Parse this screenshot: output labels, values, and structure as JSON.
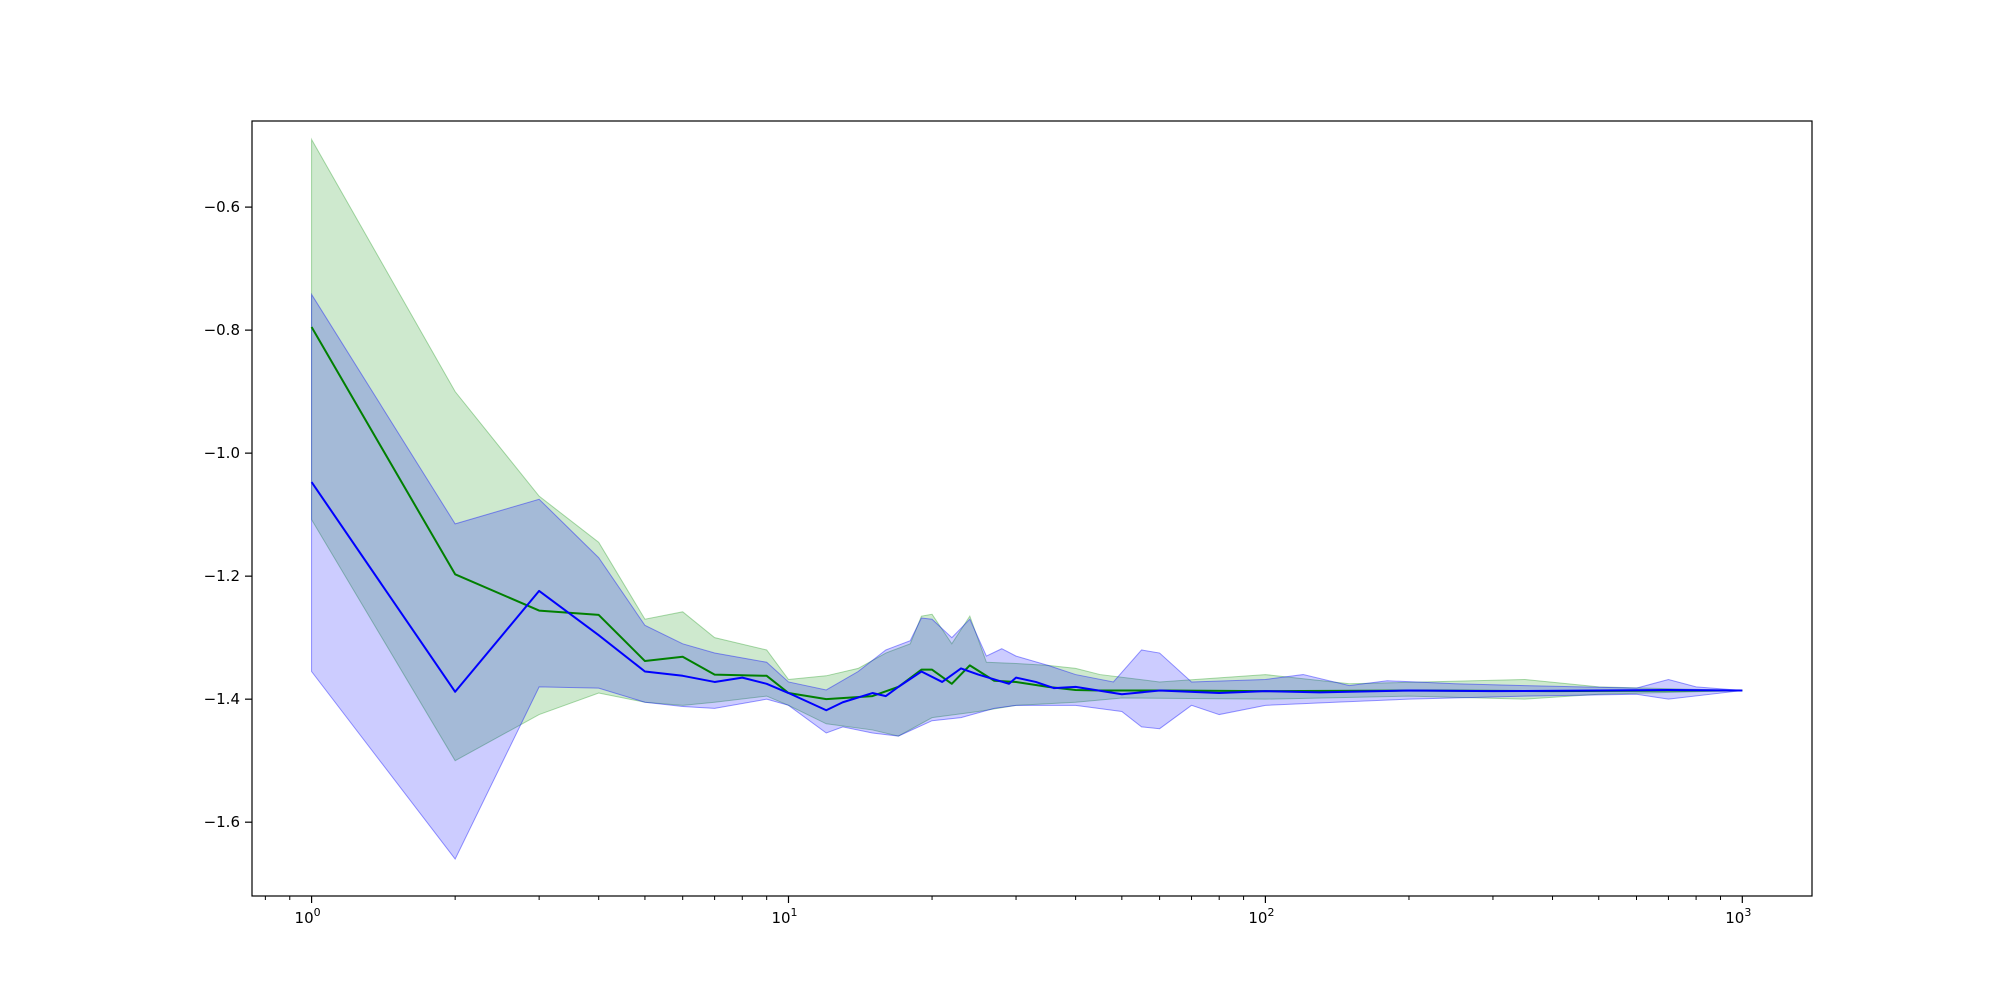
{
  "chart_data": {
    "type": "line",
    "title": "",
    "xlabel": "",
    "ylabel": "",
    "xscale": "log",
    "xlim": [
      0.75,
      1400
    ],
    "ylim": [
      -1.72,
      -0.46
    ],
    "grid": false,
    "legend": "none",
    "x_ticks": [
      {
        "value": 1,
        "base": "10",
        "exp": "0"
      },
      {
        "value": 10,
        "base": "10",
        "exp": "1"
      },
      {
        "value": 100,
        "base": "10",
        "exp": "2"
      },
      {
        "value": 1000,
        "base": "10",
        "exp": "3"
      }
    ],
    "y_ticks": [
      {
        "value": -0.6,
        "label": "−0.6"
      },
      {
        "value": -0.8,
        "label": "−0.8"
      },
      {
        "value": -1.0,
        "label": "−1.0"
      },
      {
        "value": -1.2,
        "label": "−1.2"
      },
      {
        "value": -1.4,
        "label": "−1.4"
      },
      {
        "value": -1.6,
        "label": "−1.6"
      }
    ],
    "series": [
      {
        "color": "#008000",
        "band_color": "#2ca02c",
        "band_opacity": 0.23,
        "mean": [
          [
            1,
            -0.795
          ],
          [
            2,
            -1.197
          ],
          [
            3,
            -1.256
          ],
          [
            4,
            -1.263
          ],
          [
            5,
            -1.338
          ],
          [
            6,
            -1.331
          ],
          [
            7,
            -1.36
          ],
          [
            9,
            -1.362
          ],
          [
            10,
            -1.39
          ],
          [
            12,
            -1.4
          ],
          [
            15,
            -1.395
          ],
          [
            17,
            -1.38
          ],
          [
            19,
            -1.352
          ],
          [
            20,
            -1.352
          ],
          [
            22,
            -1.375
          ],
          [
            24,
            -1.345
          ],
          [
            27,
            -1.37
          ],
          [
            30,
            -1.372
          ],
          [
            35,
            -1.38
          ],
          [
            40,
            -1.385
          ],
          [
            45,
            -1.386
          ],
          [
            60,
            -1.386
          ],
          [
            100,
            -1.387
          ],
          [
            200,
            -1.386
          ],
          [
            400,
            -1.387
          ],
          [
            700,
            -1.386
          ],
          [
            1000,
            -1.386
          ]
        ],
        "upper": [
          [
            1,
            -0.49
          ],
          [
            2,
            -0.9
          ],
          [
            3,
            -1.07
          ],
          [
            4,
            -1.145
          ],
          [
            5,
            -1.27
          ],
          [
            6,
            -1.258
          ],
          [
            7,
            -1.3
          ],
          [
            9,
            -1.32
          ],
          [
            10,
            -1.368
          ],
          [
            12,
            -1.362
          ],
          [
            14,
            -1.35
          ],
          [
            16,
            -1.325
          ],
          [
            18,
            -1.31
          ],
          [
            19,
            -1.265
          ],
          [
            20,
            -1.262
          ],
          [
            22,
            -1.31
          ],
          [
            24,
            -1.265
          ],
          [
            26,
            -1.34
          ],
          [
            30,
            -1.342
          ],
          [
            35,
            -1.345
          ],
          [
            40,
            -1.35
          ],
          [
            45,
            -1.36
          ],
          [
            60,
            -1.372
          ],
          [
            100,
            -1.36
          ],
          [
            150,
            -1.375
          ],
          [
            350,
            -1.368
          ],
          [
            500,
            -1.38
          ],
          [
            1000,
            -1.386
          ]
        ],
        "lower": [
          [
            1,
            -1.108
          ],
          [
            2,
            -1.5
          ],
          [
            3,
            -1.425
          ],
          [
            4,
            -1.39
          ],
          [
            5,
            -1.405
          ],
          [
            6,
            -1.41
          ],
          [
            7,
            -1.405
          ],
          [
            9,
            -1.395
          ],
          [
            10,
            -1.41
          ],
          [
            12,
            -1.44
          ],
          [
            15,
            -1.45
          ],
          [
            17,
            -1.46
          ],
          [
            20,
            -1.43
          ],
          [
            25,
            -1.42
          ],
          [
            30,
            -1.41
          ],
          [
            40,
            -1.405
          ],
          [
            50,
            -1.398
          ],
          [
            100,
            -1.4
          ],
          [
            200,
            -1.395
          ],
          [
            350,
            -1.4
          ],
          [
            500,
            -1.392
          ],
          [
            1000,
            -1.386
          ]
        ]
      },
      {
        "color": "#0000ff",
        "band_color": "#0000ff",
        "band_opacity": 0.2,
        "mean": [
          [
            1,
            -1.047
          ],
          [
            2,
            -1.388
          ],
          [
            3,
            -1.224
          ],
          [
            4,
            -1.296
          ],
          [
            5,
            -1.355
          ],
          [
            6,
            -1.362
          ],
          [
            7,
            -1.372
          ],
          [
            8,
            -1.365
          ],
          [
            9,
            -1.375
          ],
          [
            10,
            -1.39
          ],
          [
            12,
            -1.418
          ],
          [
            13,
            -1.405
          ],
          [
            15,
            -1.39
          ],
          [
            16,
            -1.395
          ],
          [
            17,
            -1.38
          ],
          [
            19,
            -1.355
          ],
          [
            21,
            -1.372
          ],
          [
            23,
            -1.35
          ],
          [
            25,
            -1.36
          ],
          [
            29,
            -1.375
          ],
          [
            30,
            -1.365
          ],
          [
            33,
            -1.372
          ],
          [
            36,
            -1.382
          ],
          [
            40,
            -1.38
          ],
          [
            50,
            -1.392
          ],
          [
            60,
            -1.386
          ],
          [
            80,
            -1.39
          ],
          [
            100,
            -1.387
          ],
          [
            130,
            -1.389
          ],
          [
            200,
            -1.386
          ],
          [
            300,
            -1.387
          ],
          [
            500,
            -1.386
          ],
          [
            700,
            -1.385
          ],
          [
            1000,
            -1.386
          ]
        ],
        "upper": [
          [
            1,
            -0.742
          ],
          [
            2,
            -1.115
          ],
          [
            3,
            -1.075
          ],
          [
            4,
            -1.17
          ],
          [
            5,
            -1.28
          ],
          [
            6,
            -1.31
          ],
          [
            7,
            -1.325
          ],
          [
            9,
            -1.34
          ],
          [
            10,
            -1.372
          ],
          [
            12,
            -1.385
          ],
          [
            14,
            -1.355
          ],
          [
            16,
            -1.32
          ],
          [
            18,
            -1.305
          ],
          [
            19,
            -1.268
          ],
          [
            20,
            -1.27
          ],
          [
            22,
            -1.3
          ],
          [
            24,
            -1.27
          ],
          [
            26,
            -1.33
          ],
          [
            28,
            -1.318
          ],
          [
            30,
            -1.33
          ],
          [
            35,
            -1.345
          ],
          [
            40,
            -1.36
          ],
          [
            48,
            -1.372
          ],
          [
            55,
            -1.32
          ],
          [
            60,
            -1.325
          ],
          [
            70,
            -1.372
          ],
          [
            100,
            -1.368
          ],
          [
            120,
            -1.36
          ],
          [
            150,
            -1.378
          ],
          [
            180,
            -1.37
          ],
          [
            250,
            -1.375
          ],
          [
            350,
            -1.378
          ],
          [
            600,
            -1.382
          ],
          [
            700,
            -1.368
          ],
          [
            800,
            -1.38
          ],
          [
            1000,
            -1.386
          ]
        ],
        "lower": [
          [
            1,
            -1.355
          ],
          [
            2,
            -1.66
          ],
          [
            3,
            -1.38
          ],
          [
            4,
            -1.382
          ],
          [
            5,
            -1.405
          ],
          [
            6,
            -1.412
          ],
          [
            7,
            -1.415
          ],
          [
            9,
            -1.4
          ],
          [
            10,
            -1.41
          ],
          [
            12,
            -1.455
          ],
          [
            13,
            -1.445
          ],
          [
            15,
            -1.455
          ],
          [
            17,
            -1.46
          ],
          [
            20,
            -1.435
          ],
          [
            23,
            -1.43
          ],
          [
            27,
            -1.415
          ],
          [
            30,
            -1.41
          ],
          [
            40,
            -1.41
          ],
          [
            50,
            -1.42
          ],
          [
            55,
            -1.445
          ],
          [
            60,
            -1.448
          ],
          [
            70,
            -1.41
          ],
          [
            80,
            -1.425
          ],
          [
            100,
            -1.41
          ],
          [
            140,
            -1.405
          ],
          [
            200,
            -1.4
          ],
          [
            350,
            -1.395
          ],
          [
            600,
            -1.392
          ],
          [
            700,
            -1.4
          ],
          [
            1000,
            -1.386
          ]
        ]
      }
    ]
  }
}
